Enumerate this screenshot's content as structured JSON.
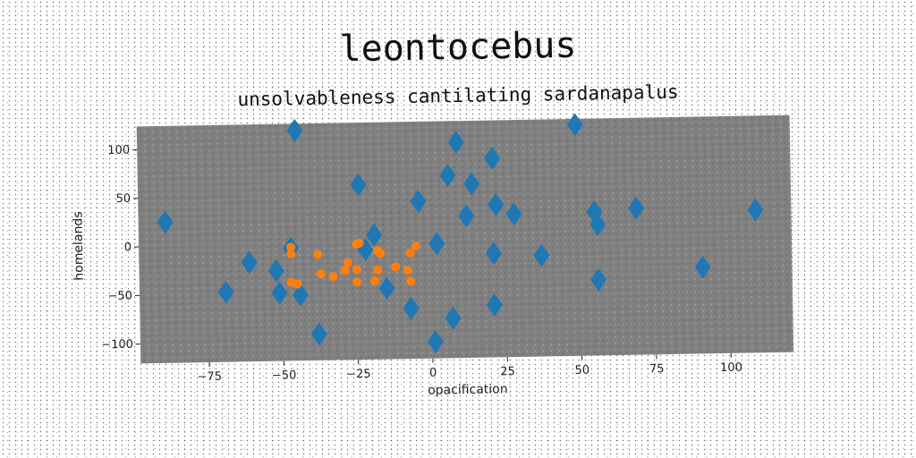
{
  "chart_data": {
    "type": "scatter",
    "title": "leontocebus",
    "subtitle": "unsolvableness cantilating sardanapalus",
    "xlabel": "opacification",
    "ylabel": "homelands",
    "xlim": [
      -98,
      121
    ],
    "ylim": [
      -120,
      124
    ],
    "xticks": [
      -75,
      -50,
      -25,
      0,
      25,
      50,
      75,
      100
    ],
    "yticks": [
      -100,
      -50,
      0,
      50,
      100
    ],
    "grid": false,
    "colors": {
      "plot_bg": "#808080",
      "diamond": "#1f77b4",
      "dot": "#ff7f0e"
    },
    "series": [
      {
        "marker": "diamond",
        "x": [
          -45,
          -89,
          9,
          21,
          49,
          6,
          14,
          -24,
          -4,
          12,
          22,
          28,
          55,
          69,
          109,
          -19,
          -22,
          -47,
          -61,
          -52,
          -69,
          -44,
          2,
          21,
          37,
          56,
          91,
          -15,
          -51,
          -7,
          7,
          21,
          -38,
          1,
          56
        ],
        "y": [
          117,
          25,
          102,
          85,
          118,
          68,
          59,
          60,
          42,
          26,
          37,
          27,
          28,
          31,
          27,
          8,
          -7,
          -4,
          -18,
          -27,
          -48,
          -52,
          -2,
          -13,
          -16,
          -42,
          -31,
          -47,
          -50,
          -68,
          -79,
          -66,
          -93,
          -103,
          15
        ]
      },
      {
        "marker": "circle",
        "x": [
          -47,
          -47,
          -38,
          -28,
          -25,
          -24,
          -18,
          -17,
          -7,
          -5,
          -47,
          -37,
          -33,
          -25,
          -18,
          -12,
          -8,
          -45,
          -29,
          -25,
          -19,
          -7
        ],
        "y": [
          -3,
          -10,
          -11,
          -20,
          -1,
          0,
          -8,
          -11,
          -11,
          -4,
          -39,
          -31,
          -34,
          -27,
          -28,
          -25,
          -29,
          -41,
          -28,
          -40,
          -39,
          -40
        ]
      }
    ]
  }
}
